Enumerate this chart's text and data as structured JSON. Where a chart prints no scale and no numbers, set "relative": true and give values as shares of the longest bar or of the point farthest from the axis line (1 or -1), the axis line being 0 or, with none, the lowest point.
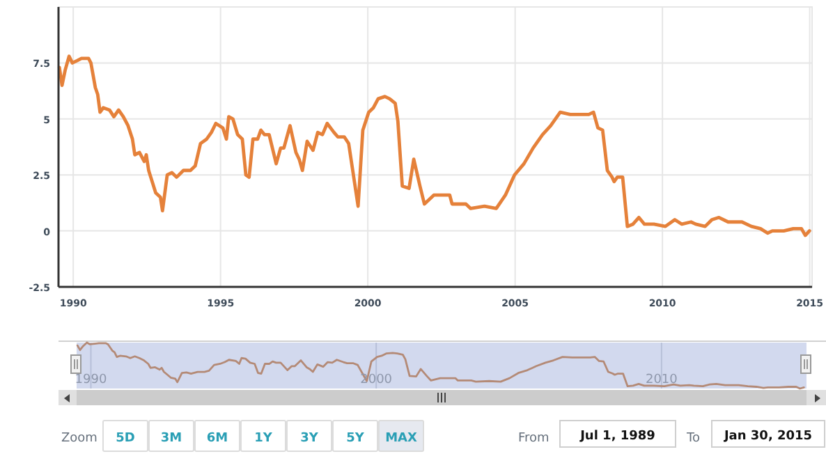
{
  "chart_data": [
    {
      "type": "line",
      "color": "#e5813a",
      "x": [
        1989.53,
        1989.62,
        1989.73,
        1989.86,
        1989.97,
        1990.13,
        1990.28,
        1990.52,
        1990.6,
        1990.75,
        1990.83,
        1990.91,
        1991.02,
        1991.23,
        1991.38,
        1991.54,
        1991.7,
        1991.86,
        1992.01,
        1992.09,
        1992.25,
        1992.41,
        1992.48,
        1992.56,
        1992.8,
        1992.96,
        1993.03,
        1993.19,
        1993.35,
        1993.51,
        1993.74,
        1993.98,
        1994.14,
        1994.32,
        1994.53,
        1994.69,
        1994.84,
        1995.08,
        1995.2,
        1995.28,
        1995.42,
        1995.58,
        1995.74,
        1995.86,
        1995.97,
        1996.1,
        1996.26,
        1996.37,
        1996.49,
        1996.65,
        1996.89,
        1997.04,
        1997.15,
        1997.36,
        1997.56,
        1997.67,
        1997.78,
        1997.94,
        1998.14,
        1998.3,
        1998.46,
        1998.62,
        1998.85,
        1998.98,
        1999.2,
        1999.35,
        1999.51,
        1999.67,
        1999.83,
        2000.03,
        2000.19,
        2000.35,
        2000.58,
        2000.74,
        2000.93,
        2001.02,
        2001.17,
        2001.4,
        2001.56,
        2001.77,
        2001.92,
        2002.24,
        2002.78,
        2002.86,
        2003.33,
        2003.49,
        2003.96,
        2004.36,
        2004.67,
        2004.98,
        2005.3,
        2005.61,
        2005.93,
        2006.21,
        2006.53,
        2006.87,
        2007.5,
        2007.66,
        2007.81,
        2007.97,
        2008.13,
        2008.29,
        2008.36,
        2008.47,
        2008.65,
        2008.81,
        2009.0,
        2009.2,
        2009.39,
        2009.71,
        2010.1,
        2010.42,
        2010.66,
        2010.97,
        2011.13,
        2011.45,
        2011.68,
        2011.92,
        2012.23,
        2012.7,
        2013.02,
        2013.33,
        2013.57,
        2013.73,
        2014.12,
        2014.44,
        2014.72,
        2014.85,
        2014.99
      ],
      "values": [
        7.3,
        6.5,
        7.2,
        7.8,
        7.5,
        7.6,
        7.7,
        7.7,
        7.5,
        6.4,
        6.1,
        5.3,
        5.5,
        5.4,
        5.1,
        5.4,
        5.1,
        4.7,
        4.1,
        3.4,
        3.5,
        3.1,
        3.4,
        2.7,
        1.7,
        1.5,
        0.9,
        2.5,
        2.6,
        2.4,
        2.7,
        2.7,
        2.9,
        3.9,
        4.1,
        4.4,
        4.8,
        4.6,
        4.1,
        5.1,
        5.0,
        4.3,
        4.1,
        2.5,
        2.4,
        4.1,
        4.1,
        4.5,
        4.3,
        4.3,
        3.0,
        3.7,
        3.7,
        4.7,
        3.5,
        3.2,
        2.7,
        4.0,
        3.6,
        4.4,
        4.3,
        4.8,
        4.4,
        4.2,
        4.2,
        3.9,
        2.5,
        1.1,
        4.5,
        5.3,
        5.5,
        5.9,
        6.0,
        5.9,
        5.7,
        4.9,
        2.0,
        1.9,
        3.2,
        2.0,
        1.2,
        1.6,
        1.6,
        1.2,
        1.2,
        1.0,
        1.1,
        1.0,
        1.6,
        2.5,
        3.0,
        3.7,
        4.3,
        4.7,
        5.3,
        5.2,
        5.2,
        5.3,
        4.6,
        4.5,
        2.7,
        2.4,
        2.2,
        2.4,
        2.4,
        0.2,
        0.3,
        0.6,
        0.3,
        0.3,
        0.2,
        0.5,
        0.3,
        0.4,
        0.3,
        0.2,
        0.5,
        0.6,
        0.4,
        0.4,
        0.2,
        0.1,
        -0.1,
        0.0,
        0.0,
        0.1,
        0.1,
        -0.2,
        0.0
      ],
      "xlim": [
        1989.5,
        2015.08
      ],
      "xticks": [
        1990,
        1995,
        2000,
        2005,
        2010,
        2015
      ],
      "ylim": [
        -2.5,
        10
      ],
      "yticks": [
        -2.5,
        0,
        2.5,
        5,
        7.5
      ],
      "grid": true,
      "marker": "none",
      "line_style": "solid",
      "annotations": [
        "Zoom",
        "5D",
        "3M",
        "6M",
        "1Y",
        "3Y",
        "5Y",
        "MAX",
        "From",
        "Jul 1, 1989",
        "To",
        "Jan 30, 2015"
      ]
    },
    {
      "type": "line",
      "color": "#b48a76",
      "x": [
        1989.53,
        1989.62,
        1989.73,
        1989.86,
        1989.97,
        1990.13,
        1990.28,
        1990.52,
        1990.6,
        1990.75,
        1990.83,
        1990.91,
        1991.02,
        1991.23,
        1991.38,
        1991.54,
        1991.7,
        1991.86,
        1992.01,
        1992.09,
        1992.25,
        1992.41,
        1992.48,
        1992.56,
        1992.8,
        1992.96,
        1993.03,
        1993.19,
        1993.35,
        1993.51,
        1993.74,
        1993.98,
        1994.14,
        1994.32,
        1994.53,
        1994.69,
        1994.84,
        1995.08,
        1995.2,
        1995.28,
        1995.42,
        1995.58,
        1995.74,
        1995.86,
        1995.97,
        1996.1,
        1996.26,
        1996.37,
        1996.49,
        1996.65,
        1996.89,
        1997.04,
        1997.15,
        1997.36,
        1997.56,
        1997.67,
        1997.78,
        1997.94,
        1998.14,
        1998.3,
        1998.46,
        1998.62,
        1998.85,
        1998.98,
        1999.2,
        1999.35,
        1999.51,
        1999.67,
        1999.83,
        2000.03,
        2000.19,
        2000.35,
        2000.58,
        2000.74,
        2000.93,
        2001.02,
        2001.17,
        2001.4,
        2001.56,
        2001.77,
        2001.92,
        2002.24,
        2002.78,
        2002.86,
        2003.33,
        2003.49,
        2003.96,
        2004.36,
        2004.67,
        2004.98,
        2005.3,
        2005.61,
        2005.93,
        2006.21,
        2006.53,
        2006.87,
        2007.5,
        2007.66,
        2007.81,
        2007.97,
        2008.13,
        2008.29,
        2008.36,
        2008.47,
        2008.65,
        2008.81,
        2009.0,
        2009.2,
        2009.39,
        2009.71,
        2010.1,
        2010.42,
        2010.66,
        2010.97,
        2011.13,
        2011.45,
        2011.68,
        2011.92,
        2012.23,
        2012.7,
        2013.02,
        2013.33,
        2013.57,
        2013.73,
        2014.12,
        2014.44,
        2014.72,
        2014.85,
        2014.99
      ],
      "values": [
        0.938,
        0.838,
        0.925,
        1,
        0.963,
        0.975,
        0.988,
        0.988,
        0.963,
        0.825,
        0.788,
        0.688,
        0.713,
        0.7,
        0.663,
        0.7,
        0.663,
        0.613,
        0.538,
        0.45,
        0.463,
        0.413,
        0.45,
        0.363,
        0.238,
        0.213,
        0.138,
        0.338,
        0.35,
        0.325,
        0.363,
        0.363,
        0.388,
        0.513,
        0.538,
        0.575,
        0.625,
        0.6,
        0.538,
        0.663,
        0.65,
        0.563,
        0.538,
        0.338,
        0.325,
        0.538,
        0.538,
        0.588,
        0.563,
        0.563,
        0.4,
        0.488,
        0.488,
        0.613,
        0.463,
        0.425,
        0.363,
        0.525,
        0.475,
        0.575,
        0.563,
        0.625,
        0.575,
        0.55,
        0.55,
        0.513,
        0.338,
        0.163,
        0.588,
        0.688,
        0.713,
        0.763,
        0.775,
        0.763,
        0.738,
        0.638,
        0.275,
        0.263,
        0.425,
        0.275,
        0.175,
        0.225,
        0.225,
        0.175,
        0.175,
        0.15,
        0.163,
        0.15,
        0.225,
        0.338,
        0.4,
        0.488,
        0.563,
        0.613,
        0.688,
        0.675,
        0.675,
        0.688,
        0.6,
        0.588,
        0.363,
        0.325,
        0.3,
        0.325,
        0.325,
        0.05,
        0.063,
        0.1,
        0.063,
        0.063,
        0.05,
        0.088,
        0.063,
        0.075,
        0.063,
        0.05,
        0.088,
        0.1,
        0.075,
        0.075,
        0.05,
        0.038,
        0.013,
        0.025,
        0.025,
        0.038,
        0.038,
        0,
        0.025
      ],
      "xlim": [
        1989.5,
        2015.08
      ],
      "xticks": [
        1990,
        2000,
        2010
      ],
      "relative": true,
      "tick_labels": "x",
      "bands": [
        {
          "axis": "x",
          "from": 1989.5,
          "to": 2015.08,
          "color": "#cdd5ec"
        }
      ],
      "grid": "x",
      "marker": "none",
      "line_style": "solid"
    }
  ]
}
